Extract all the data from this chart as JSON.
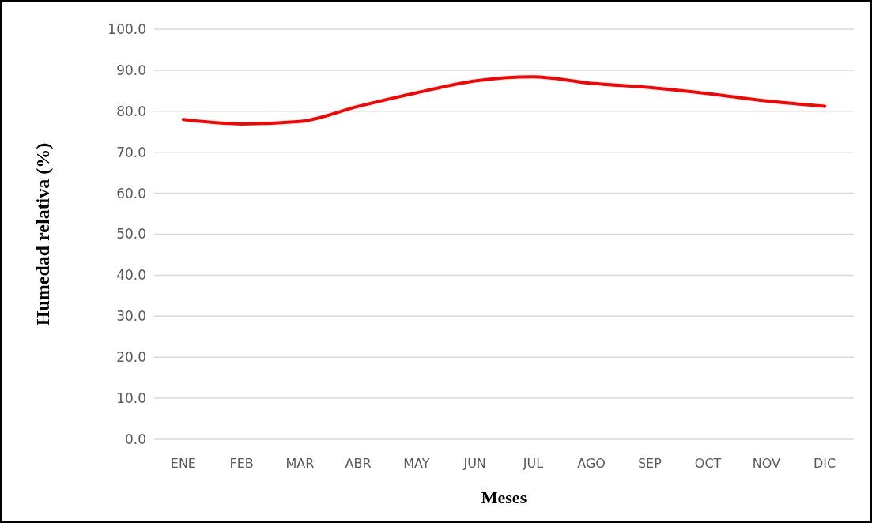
{
  "chart_data": {
    "type": "line",
    "xlabel": "Meses",
    "ylabel": "Humedad relativa (%)",
    "categories": [
      "ENE",
      "FEB",
      "MAR",
      "ABR",
      "MAY",
      "JUN",
      "JUL",
      "AGO",
      "SEP",
      "OCT",
      "NOV",
      "DIC"
    ],
    "series": [
      {
        "color": "#ff0000",
        "values": [
          78.0,
          76.9,
          77.5,
          81.2,
          84.5,
          87.4,
          88.4,
          86.8,
          85.8,
          84.3,
          82.5,
          81.2
        ]
      }
    ],
    "ylim": [
      0,
      100
    ],
    "yticks": [
      {
        "value": 0,
        "label": "0.0"
      },
      {
        "value": 10,
        "label": "10.0"
      },
      {
        "value": 20,
        "label": "20.0"
      },
      {
        "value": 30,
        "label": "30.0"
      },
      {
        "value": 40,
        "label": "40.0"
      },
      {
        "value": 50,
        "label": "50.0"
      },
      {
        "value": 60,
        "label": "60.0"
      },
      {
        "value": 70,
        "label": "70.0"
      },
      {
        "value": 80,
        "label": "80.0"
      },
      {
        "value": 90,
        "label": "90.0"
      },
      {
        "value": 100,
        "label": "100.0"
      }
    ],
    "grid": "y",
    "marker": "none",
    "line_style": "solid"
  }
}
